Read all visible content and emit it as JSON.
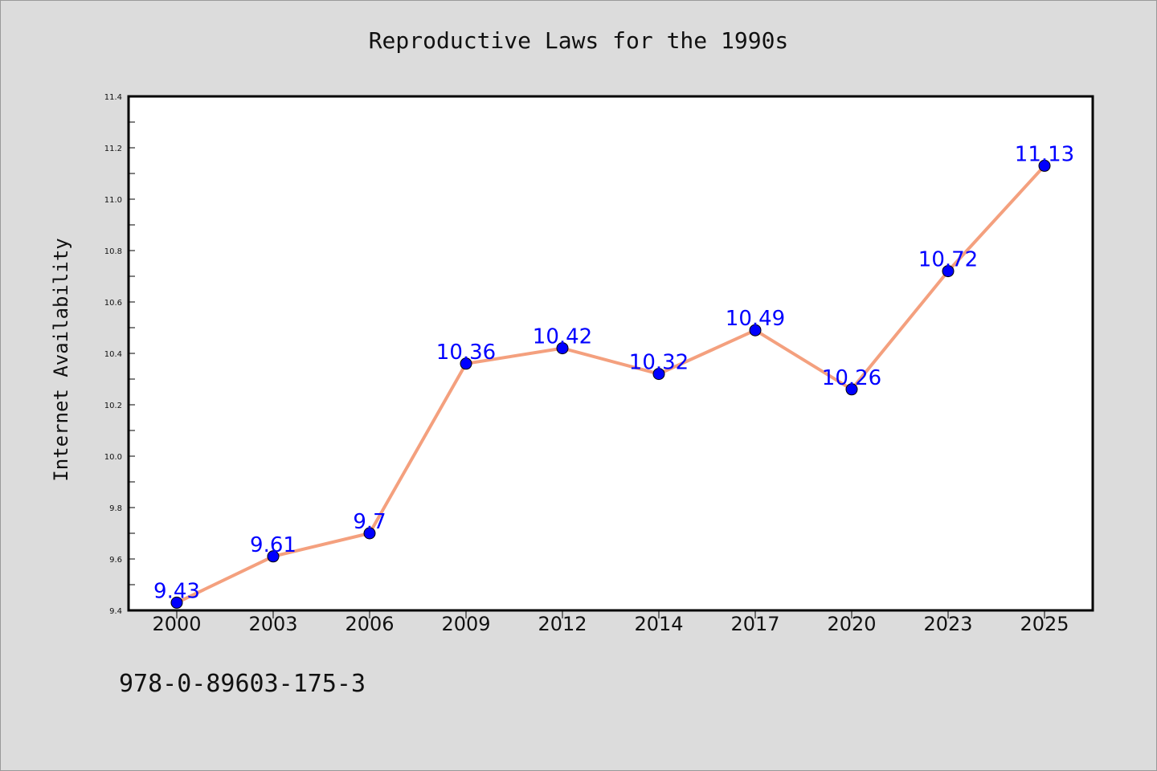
{
  "chart_data": {
    "type": "line",
    "title": "Reproductive Laws for the 1990s",
    "xlabel": "",
    "ylabel": "Internet Availability",
    "categories": [
      "2000",
      "2003",
      "2006",
      "2009",
      "2012",
      "2014",
      "2017",
      "2020",
      "2023",
      "2025"
    ],
    "values": [
      9.43,
      9.61,
      9.7,
      10.36,
      10.42,
      10.32,
      10.49,
      10.26,
      10.72,
      11.13
    ],
    "data_labels": [
      "9.43",
      "9.61",
      "9.7",
      "10.36",
      "10.42",
      "10.32",
      "10.49",
      "10.26",
      "10.72",
      "11.13"
    ],
    "ylim": [
      9.4,
      11.4
    ],
    "yticks": [
      "9.4",
      "9.6",
      "9.8",
      "10.0",
      "10.2",
      "10.4",
      "10.6",
      "10.8",
      "11.0",
      "11.2",
      "11.4"
    ],
    "grid": false,
    "line_color": "#f4a07e",
    "marker_color": "#0000ff",
    "label_color": "#0000ff"
  },
  "footer_text": "978-0-89603-175-3"
}
